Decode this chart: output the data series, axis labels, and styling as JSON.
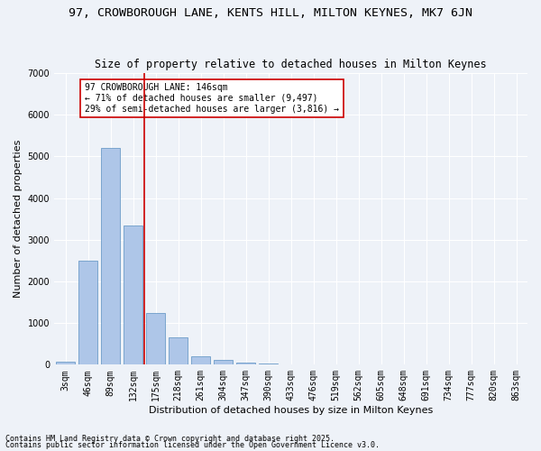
{
  "title": "97, CROWBOROUGH LANE, KENTS HILL, MILTON KEYNES, MK7 6JN",
  "subtitle": "Size of property relative to detached houses in Milton Keynes",
  "xlabel": "Distribution of detached houses by size in Milton Keynes",
  "ylabel": "Number of detached properties",
  "categories": [
    "3sqm",
    "46sqm",
    "89sqm",
    "132sqm",
    "175sqm",
    "218sqm",
    "261sqm",
    "304sqm",
    "347sqm",
    "390sqm",
    "433sqm",
    "476sqm",
    "519sqm",
    "562sqm",
    "605sqm",
    "648sqm",
    "691sqm",
    "734sqm",
    "777sqm",
    "820sqm",
    "863sqm"
  ],
  "bar_values": [
    80,
    2500,
    5200,
    3350,
    1250,
    650,
    200,
    120,
    60,
    30,
    10,
    5,
    3,
    2,
    1,
    1,
    0,
    0,
    0,
    0,
    0
  ],
  "bar_color": "#aec6e8",
  "bar_edge_color": "#5a8fc0",
  "vline_x_index": 3,
  "vline_color": "#cc0000",
  "ylim": [
    0,
    7000
  ],
  "yticks": [
    0,
    1000,
    2000,
    3000,
    4000,
    5000,
    6000,
    7000
  ],
  "annotation_text": "97 CROWBOROUGH LANE: 146sqm\n← 71% of detached houses are smaller (9,497)\n29% of semi-detached houses are larger (3,816) →",
  "annotation_box_color": "#ffffff",
  "annotation_box_edge": "#cc0000",
  "footer_line1": "Contains HM Land Registry data © Crown copyright and database right 2025.",
  "footer_line2": "Contains public sector information licensed under the Open Government Licence v3.0.",
  "background_color": "#eef2f8",
  "grid_color": "#ffffff",
  "title_fontsize": 9.5,
  "subtitle_fontsize": 8.5,
  "axis_label_fontsize": 8,
  "tick_fontsize": 7,
  "annotation_fontsize": 7,
  "footer_fontsize": 6
}
